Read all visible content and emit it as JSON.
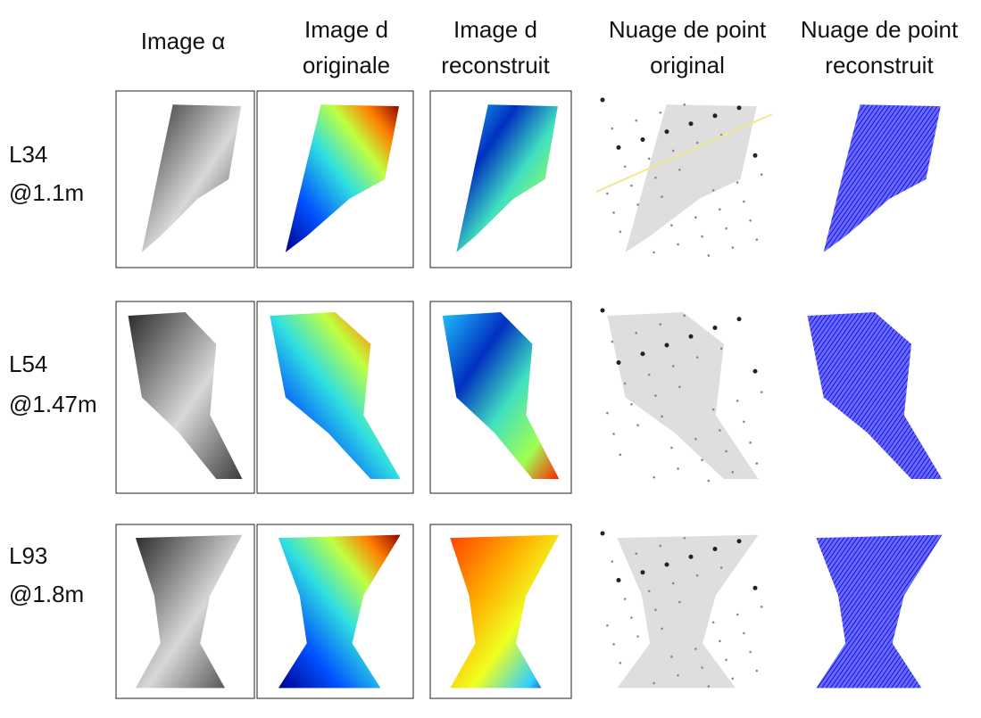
{
  "column_headers": [
    [
      "Image α"
    ],
    [
      "Image d",
      "originale"
    ],
    [
      "Image d",
      "reconstruit"
    ],
    [
      "Nuage de point",
      "original"
    ],
    [
      "Nuage de point",
      "reconstruit"
    ]
  ],
  "row_labels": [
    [
      "L34",
      "@1.1m"
    ],
    [
      "L54",
      "@1.47m"
    ],
    [
      "L93",
      "@1.8m"
    ]
  ]
}
